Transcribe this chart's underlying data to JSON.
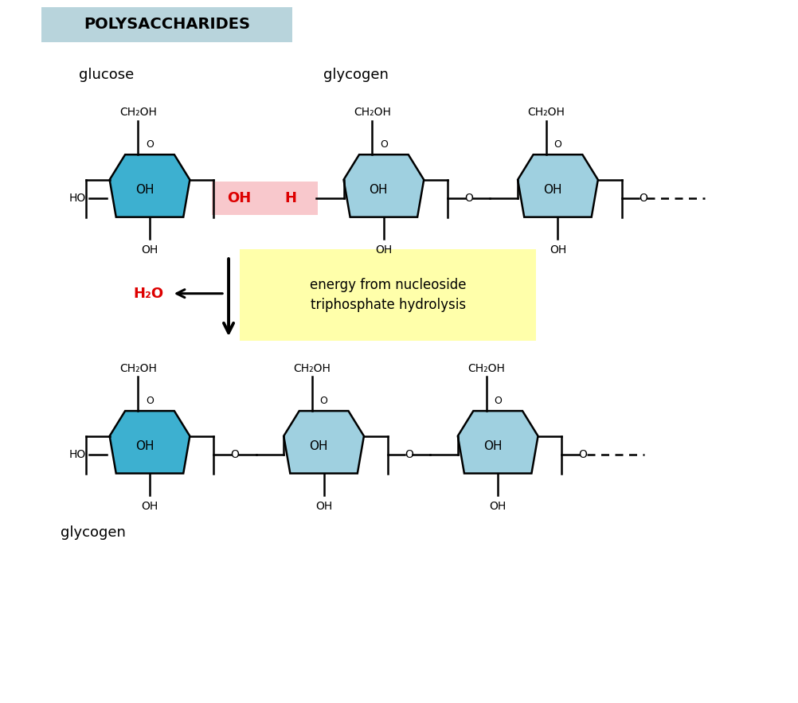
{
  "title": "POLYSACCHARIDES",
  "title_bg": "#b8d4dc",
  "glucose_label": "glucose",
  "glycogen_label_top": "glycogen",
  "glycogen_label_bottom": "glycogen",
  "energy_label": "energy from nucleoside\ntriphosphate hydrolysis",
  "energy_bg": "#ffffaa",
  "ring_color_dark": "#3db0d0",
  "ring_color_light": "#9fd0e0",
  "highlight_bg": "#f8c8cc",
  "red_color": "#dd0000",
  "bg_color": "#ffffff",
  "lw": 1.8,
  "ring_size": 0.82
}
